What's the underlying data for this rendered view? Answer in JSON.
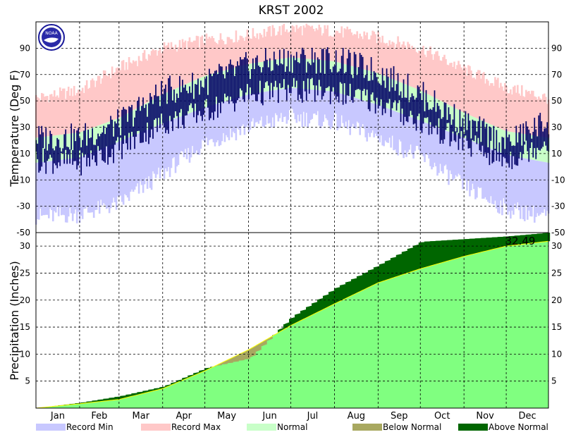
{
  "chart_data": [
    {
      "type": "area",
      "panel": "temperature",
      "title": "KRST 2002",
      "ylabel": "Temperature (Deg F)",
      "ylim": [
        -50,
        110
      ],
      "yticks": [
        90,
        70,
        50,
        30,
        10,
        -10,
        -30,
        -50
      ],
      "grid": true,
      "day_of_year": [
        1,
        32,
        60,
        91,
        121,
        152,
        182,
        213,
        244,
        274,
        305,
        335,
        365
      ],
      "normal_high": [
        22,
        26,
        37,
        55,
        69,
        78,
        83,
        80,
        71,
        58,
        41,
        27,
        22
      ],
      "normal_low": [
        3,
        7,
        19,
        33,
        45,
        55,
        60,
        57,
        47,
        35,
        22,
        9,
        3
      ],
      "record_max": [
        52,
        58,
        75,
        90,
        96,
        100,
        105,
        103,
        98,
        90,
        74,
        60,
        52
      ],
      "record_min": [
        -38,
        -36,
        -28,
        -5,
        18,
        30,
        38,
        34,
        22,
        8,
        -15,
        -32,
        -38
      ],
      "observed_high": [
        22,
        22,
        33,
        57,
        64,
        77,
        82,
        81,
        72,
        55,
        33,
        18,
        35
      ],
      "observed_low": [
        5,
        3,
        14,
        33,
        42,
        55,
        58,
        57,
        49,
        34,
        18,
        5,
        20
      ],
      "colors": {
        "record_min": "#c8c8ff",
        "record_max": "#ffc8c8",
        "normal": "#c8ffc8",
        "observed": "#000066"
      },
      "watermark": "NOAA"
    },
    {
      "type": "area",
      "panel": "precipitation",
      "ylabel": "Precipitation (Inches)",
      "ylim": [
        0,
        32.5
      ],
      "yticks": [
        30,
        25,
        20,
        15,
        10,
        5
      ],
      "grid": true,
      "categories": [
        "Jan",
        "Feb",
        "Mar",
        "Apr",
        "May",
        "Jun",
        "Jul",
        "Aug",
        "Sep",
        "Oct",
        "Nov",
        "Dec"
      ],
      "day_of_year": [
        1,
        32,
        60,
        91,
        121,
        152,
        182,
        213,
        244,
        274,
        305,
        335,
        365
      ],
      "normal_cumulative": [
        0,
        0.8,
        1.6,
        3.6,
        6.9,
        10.8,
        15.3,
        19.3,
        23.2,
        25.8,
        28.1,
        30.0,
        30.9
      ],
      "observed_cumulative": [
        0,
        1.0,
        2.2,
        4.0,
        7.4,
        9.2,
        16.8,
        22.2,
        26.5,
        30.8,
        31.3,
        31.8,
        32.49
      ],
      "total_label": "32.49",
      "legend_position": "bottom",
      "legend": [
        {
          "label": "Record Min",
          "color": "#c8c8ff"
        },
        {
          "label": "Record Max",
          "color": "#ffc8c8"
        },
        {
          "label": "Normal",
          "color": "#c8ffc8"
        },
        {
          "label": "Below Normal",
          "color": "#a8a860"
        },
        {
          "label": "Above Normal",
          "color": "#006600"
        }
      ],
      "colors": {
        "normal_area": "#80ff80",
        "below_normal": "#a8a860",
        "above_normal": "#006600",
        "normal_line": "#ffff00"
      }
    }
  ]
}
